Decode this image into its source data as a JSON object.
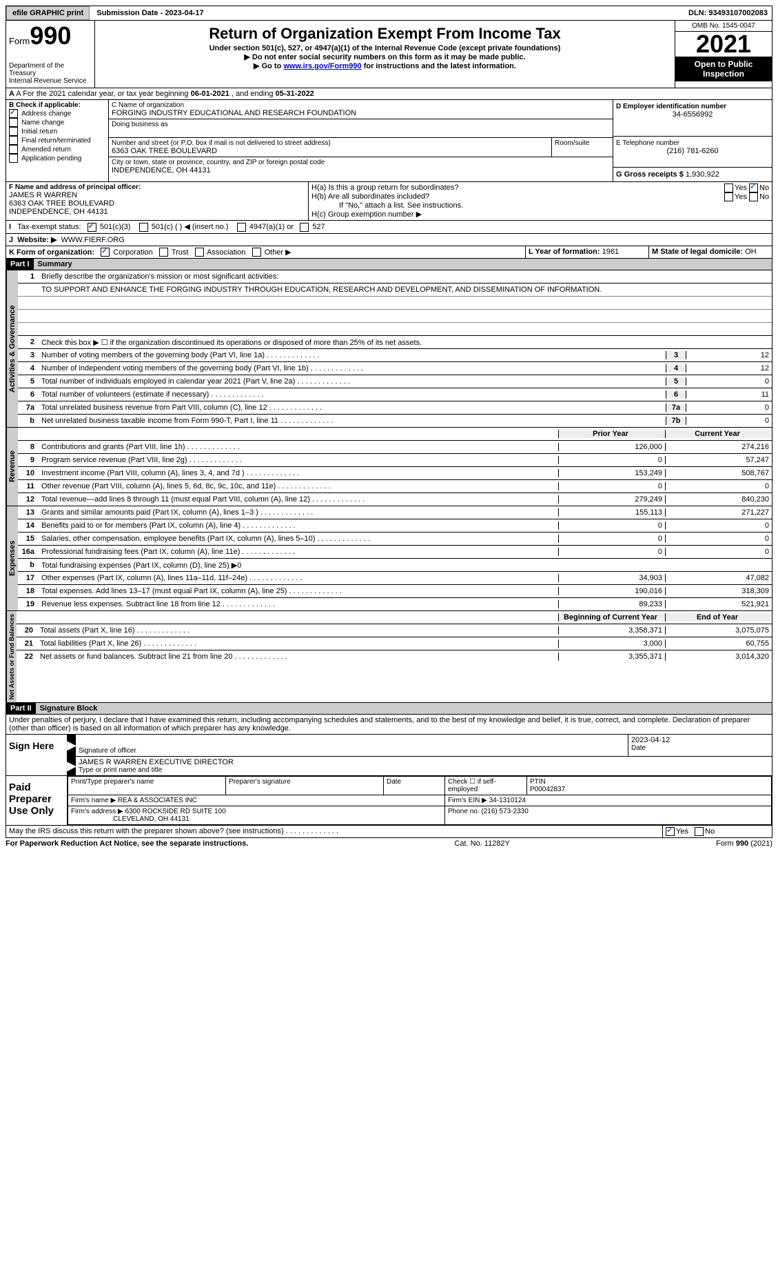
{
  "topbar": {
    "efile": "efile GRAPHIC print",
    "submission": "Submission Date - 2023-04-17",
    "dln": "DLN: 93493107002083"
  },
  "hdr": {
    "form": "Form",
    "num": "990",
    "dept": "Department of the Treasury",
    "irs": "Internal Revenue Service",
    "title": "Return of Organization Exempt From Income Tax",
    "sub1": "Under section 501(c), 527, or 4947(a)(1) of the Internal Revenue Code (except private foundations)",
    "sub2": "▶ Do not enter social security numbers on this form as it may be made public.",
    "sub3a": "▶ Go to ",
    "sub3link": "www.irs.gov/Form990",
    "sub3b": " for instructions and the latest information.",
    "omb": "OMB No. 1545-0047",
    "year": "2021",
    "open": "Open to Public Inspection"
  },
  "A": {
    "text": "A For the 2021 calendar year, or tax year beginning ",
    "begin": "06-01-2021",
    "mid": " , and ending ",
    "end": "05-31-2022"
  },
  "B": {
    "hdr": "B Check if applicable:",
    "items": [
      {
        "l": "Address change",
        "c": true
      },
      {
        "l": "Name change",
        "c": false
      },
      {
        "l": "Initial return",
        "c": false
      },
      {
        "l": "Final return/terminated",
        "c": false
      },
      {
        "l": "Amended return",
        "c": false
      },
      {
        "l": "Application pending",
        "c": false
      }
    ]
  },
  "C": {
    "namelbl": "C Name of organization",
    "name": "FORGING INDUSTRY EDUCATIONAL AND RESEARCH FOUNDATION",
    "dba": "Doing business as",
    "addrlbl": "Number and street (or P.O. box if mail is not delivered to street address)",
    "addr": "6363 OAK TREE BOULEVARD",
    "room": "Room/suite",
    "citylbl": "City or town, state or province, country, and ZIP or foreign postal code",
    "city": "INDEPENDENCE, OH  44131"
  },
  "D": {
    "lbl": "D Employer identification number",
    "val": "34-6556992"
  },
  "E": {
    "lbl": "E Telephone number",
    "val": "(216) 781-6260"
  },
  "G": {
    "lbl": "G Gross receipts $",
    "val": "1,930,922"
  },
  "F": {
    "lbl": "F Name and address of principal officer:",
    "name": "JAMES R WARREN",
    "addr": "6363 OAK TREE BOULEVARD",
    "city": "INDEPENDENCE, OH  44131"
  },
  "H": {
    "a": "H(a)  Is this a group return for subordinates?",
    "ano": "No",
    "ayes": "Yes",
    "b": "H(b)  Are all subordinates included?",
    "bno": "No",
    "byes": "Yes",
    "bnote": "If \"No,\" attach a list. See instructions.",
    "c": "H(c)  Group exemption number ▶"
  },
  "I": {
    "lbl": "Tax-exempt status:",
    "o1": "501(c)(3)",
    "o2": "501(c) (  ) ◀ (insert no.)",
    "o3": "4947(a)(1) or",
    "o4": "527"
  },
  "J": {
    "lbl": "Website: ▶",
    "val": "WWW.FIERF.ORG"
  },
  "K": {
    "lbl": "K Form of organization:",
    "o1": "Corporation",
    "o2": "Trust",
    "o3": "Association",
    "o4": "Other ▶"
  },
  "L": {
    "lbl": "L Year of formation:",
    "val": "1961"
  },
  "M": {
    "lbl": "M State of legal domicile:",
    "val": "OH"
  },
  "part1": {
    "bar": "Part I",
    "title": "Summary"
  },
  "summary": {
    "l1": "Briefly describe the organization's mission or most significant activities:",
    "mission": "TO SUPPORT AND ENHANCE THE FORGING INDUSTRY THROUGH EDUCATION, RESEARCH AND DEVELOPMENT, AND DISSEMINATION OF INFORMATION.",
    "l2": "Check this box ▶ ☐ if the organization discontinued its operations or disposed of more than 25% of its net assets.",
    "rows": [
      {
        "n": "3",
        "t": "Number of voting members of the governing body (Part VI, line 1a)",
        "b": "3",
        "v": "12"
      },
      {
        "n": "4",
        "t": "Number of independent voting members of the governing body (Part VI, line 1b)",
        "b": "4",
        "v": "12"
      },
      {
        "n": "5",
        "t": "Total number of individuals employed in calendar year 2021 (Part V, line 2a)",
        "b": "5",
        "v": "0"
      },
      {
        "n": "6",
        "t": "Total number of volunteers (estimate if necessary)",
        "b": "6",
        "v": "11"
      },
      {
        "n": "7a",
        "t": "Total unrelated business revenue from Part VIII, column (C), line 12",
        "b": "7a",
        "v": "0"
      },
      {
        "n": "b",
        "t": "Net unrelated business taxable income from Form 990-T, Part I, line 11",
        "b": "7b",
        "v": "0"
      }
    ],
    "prior": "Prior Year",
    "current": "Current Year",
    "rev": [
      {
        "n": "8",
        "t": "Contributions and grants (Part VIII, line 1h)",
        "p": "126,000",
        "c": "274,216"
      },
      {
        "n": "9",
        "t": "Program service revenue (Part VIII, line 2g)",
        "p": "0",
        "c": "57,247"
      },
      {
        "n": "10",
        "t": "Investment income (Part VIII, column (A), lines 3, 4, and 7d )",
        "p": "153,249",
        "c": "508,767"
      },
      {
        "n": "11",
        "t": "Other revenue (Part VIII, column (A), lines 5, 6d, 8c, 9c, 10c, and 11e)",
        "p": "0",
        "c": "0"
      },
      {
        "n": "12",
        "t": "Total revenue—add lines 8 through 11 (must equal Part VIII, column (A), line 12)",
        "p": "279,249",
        "c": "840,230"
      }
    ],
    "exp": [
      {
        "n": "13",
        "t": "Grants and similar amounts paid (Part IX, column (A), lines 1–3 )",
        "p": "155,113",
        "c": "271,227"
      },
      {
        "n": "14",
        "t": "Benefits paid to or for members (Part IX, column (A), line 4)",
        "p": "0",
        "c": "0"
      },
      {
        "n": "15",
        "t": "Salaries, other compensation, employee benefits (Part IX, column (A), lines 5–10)",
        "p": "0",
        "c": "0"
      },
      {
        "n": "16a",
        "t": "Professional fundraising fees (Part IX, column (A), line 11e)",
        "p": "0",
        "c": "0"
      },
      {
        "n": "b",
        "t": "Total fundraising expenses (Part IX, column (D), line 25) ▶0",
        "p": "",
        "c": "",
        "grey": true
      },
      {
        "n": "17",
        "t": "Other expenses (Part IX, column (A), lines 11a–11d, 11f–24e)",
        "p": "34,903",
        "c": "47,082"
      },
      {
        "n": "18",
        "t": "Total expenses. Add lines 13–17 (must equal Part IX, column (A), line 25)",
        "p": "190,016",
        "c": "318,309"
      },
      {
        "n": "19",
        "t": "Revenue less expenses. Subtract line 18 from line 12",
        "p": "89,233",
        "c": "521,921"
      }
    ],
    "begin": "Beginning of Current Year",
    "end": "End of Year",
    "net": [
      {
        "n": "20",
        "t": "Total assets (Part X, line 16)",
        "p": "3,358,371",
        "c": "3,075,075"
      },
      {
        "n": "21",
        "t": "Total liabilities (Part X, line 26)",
        "p": "3,000",
        "c": "60,755"
      },
      {
        "n": "22",
        "t": "Net assets or fund balances. Subtract line 21 from line 20",
        "p": "3,355,371",
        "c": "3,014,320"
      }
    ]
  },
  "sidetabs": {
    "gov": "Activities & Governance",
    "rev": "Revenue",
    "exp": "Expenses",
    "net": "Net Assets or Fund Balances"
  },
  "part2": {
    "bar": "Part II",
    "title": "Signature Block",
    "decl": "Under penalties of perjury, I declare that I have examined this return, including accompanying schedules and statements, and to the best of my knowledge and belief, it is true, correct, and complete. Declaration of preparer (other than officer) is based on all information of which preparer has any knowledge."
  },
  "sign": {
    "here": "Sign Here",
    "siglbl": "Signature of officer",
    "date": "2023-04-12",
    "datelbl": "Date",
    "name": "JAMES R WARREN  EXECUTIVE DIRECTOR",
    "namelbl": "Type or print name and title"
  },
  "paid": {
    "lbl": "Paid Preparer Use Only",
    "h1": "Print/Type preparer's name",
    "h2": "Preparer's signature",
    "h3": "Date",
    "h4": "Check ☐ if self-employed",
    "h5": "PTIN",
    "ptin": "P00042837",
    "firmlbl": "Firm's name   ▶",
    "firm": "REA & ASSOCIATES INC",
    "einlbl": "Firm's EIN ▶",
    "ein": "34-1310124",
    "addrlbl": "Firm's address ▶",
    "addr": "6300 ROCKSIDE RD SUITE 100",
    "city": "CLEVELAND, OH  44131",
    "phonelbl": "Phone no.",
    "phone": "(216) 573-2330"
  },
  "discuss": {
    "t": "May the IRS discuss this return with the preparer shown above? (see instructions)",
    "yes": "Yes",
    "no": "No"
  },
  "footer": {
    "l": "For Paperwork Reduction Act Notice, see the separate instructions.",
    "m": "Cat. No. 11282Y",
    "r": "Form 990 (2021)"
  }
}
